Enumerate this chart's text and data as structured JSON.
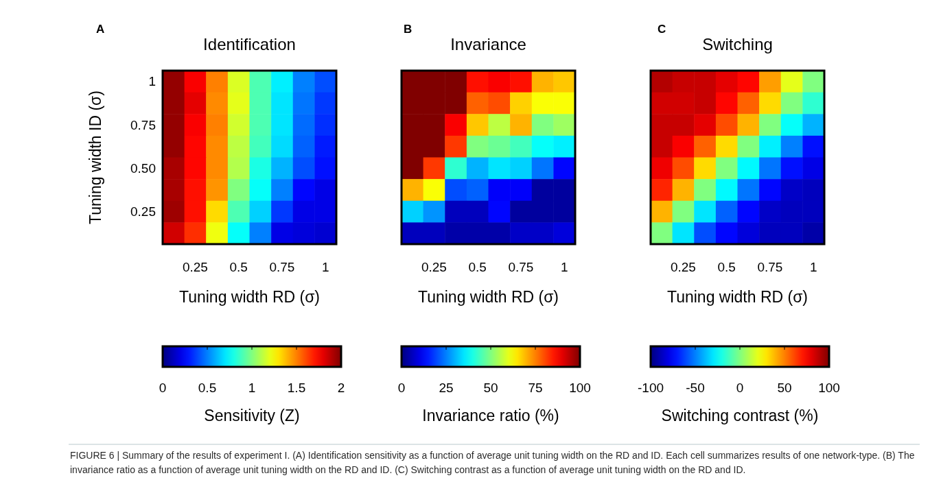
{
  "chart_data": [
    {
      "type": "heatmap",
      "title": "Identification",
      "xlabel": "Tuning width RD (σ)",
      "ylabel": "Tuning width ID (σ)",
      "clabel": "Sensitivity (Z)",
      "annotations": [
        "A",
        "FIGURE 6 | Summary of the results of experiment I. (A) Identification sensitivity as a function of average unit tuning width on the RD and ID. Each cell summarizes results of one network-type. (B) The invariance ratio as a function of average unit tuning width on the RD and ID. (C) Switching contrast as a function of average unit tuning width on the RD and ID."
      ],
      "categories": [
        null,
        "0.25",
        null,
        "0.5",
        null,
        "0.75",
        null,
        "1"
      ],
      "y_categories": [
        "1",
        null,
        "0.75",
        null,
        "0.50",
        null,
        "0.25",
        null
      ],
      "cells": [
        [
          1.96,
          1.76,
          1.5,
          1.18,
          0.9,
          0.72,
          0.5,
          0.4
        ],
        [
          1.96,
          1.8,
          1.48,
          1.2,
          0.9,
          0.7,
          0.48,
          0.36
        ],
        [
          1.96,
          1.76,
          1.5,
          1.16,
          0.9,
          0.7,
          0.46,
          0.34
        ],
        [
          1.96,
          1.74,
          1.48,
          1.12,
          0.88,
          0.68,
          0.44,
          0.3
        ],
        [
          1.92,
          1.74,
          1.48,
          1.1,
          0.8,
          0.6,
          0.4,
          0.28
        ],
        [
          1.92,
          1.72,
          1.46,
          1.0,
          0.76,
          0.5,
          0.26,
          0.2
        ],
        [
          1.94,
          1.72,
          1.32,
          0.9,
          0.66,
          0.36,
          0.2,
          0.2
        ],
        [
          1.84,
          1.66,
          1.22,
          0.76,
          0.5,
          0.2,
          0.18,
          0.16
        ]
      ],
      "clim": [
        0,
        2
      ],
      "cticks": [
        0,
        0.5,
        1,
        1.5,
        2
      ]
    },
    {
      "type": "heatmap",
      "title": "Invariance",
      "xlabel": "Tuning width RD (σ)",
      "clabel": "Invariance ratio (%)",
      "annotations": [
        "B"
      ],
      "tick_labels": "x",
      "categories": [
        null,
        "0.25",
        null,
        "0.5",
        null,
        "0.75",
        null,
        "1"
      ],
      "y_categories": [
        "1",
        null,
        "0.75",
        null,
        "0.50",
        null,
        "0.25",
        null
      ],
      "cells": [
        [
          100,
          100,
          100,
          86,
          88,
          86,
          70,
          68
        ],
        [
          100,
          100,
          100,
          78,
          80,
          67,
          62,
          62
        ],
        [
          100,
          100,
          88,
          68,
          56,
          70,
          50,
          53
        ],
        [
          100,
          100,
          82,
          50,
          48,
          44,
          38,
          36
        ],
        [
          100,
          82,
          42,
          30,
          35,
          33,
          24,
          13
        ],
        [
          70,
          62,
          20,
          22,
          12,
          12,
          3,
          3
        ],
        [
          33,
          27,
          6,
          6,
          13,
          3,
          3,
          3
        ],
        [
          6,
          6,
          4,
          4,
          4,
          7,
          7,
          9
        ]
      ],
      "clim": [
        0,
        100
      ],
      "cticks": [
        0,
        25,
        50,
        75,
        100
      ]
    },
    {
      "type": "heatmap",
      "title": "Switching",
      "xlabel": "Tuning width RD (σ)",
      "clabel": "Switching contrast (%)",
      "annotations": [
        "C"
      ],
      "tick_labels": "x",
      "categories": [
        null,
        "0.25",
        null,
        "0.5",
        null,
        "0.75",
        null,
        "1"
      ],
      "y_categories": [
        "1",
        null,
        "0.75",
        null,
        "0.50",
        null,
        "0.25",
        null
      ],
      "cells": [
        [
          90,
          86,
          86,
          80,
          74,
          44,
          20,
          0
        ],
        [
          84,
          84,
          86,
          74,
          56,
          32,
          0,
          -16
        ],
        [
          86,
          86,
          80,
          60,
          40,
          0,
          -24,
          -40
        ],
        [
          86,
          76,
          56,
          32,
          0,
          -28,
          -50,
          -72
        ],
        [
          78,
          60,
          32,
          0,
          -26,
          -52,
          -72,
          -80
        ],
        [
          68,
          40,
          0,
          -26,
          -52,
          -74,
          -86,
          -88
        ],
        [
          40,
          0,
          -30,
          -56,
          -74,
          -86,
          -88,
          -88
        ],
        [
          0,
          -30,
          -60,
          -74,
          -82,
          -88,
          -88,
          -92
        ]
      ],
      "clim": [
        -100,
        100
      ],
      "cticks": [
        -100,
        -50,
        0,
        50,
        100
      ]
    }
  ]
}
